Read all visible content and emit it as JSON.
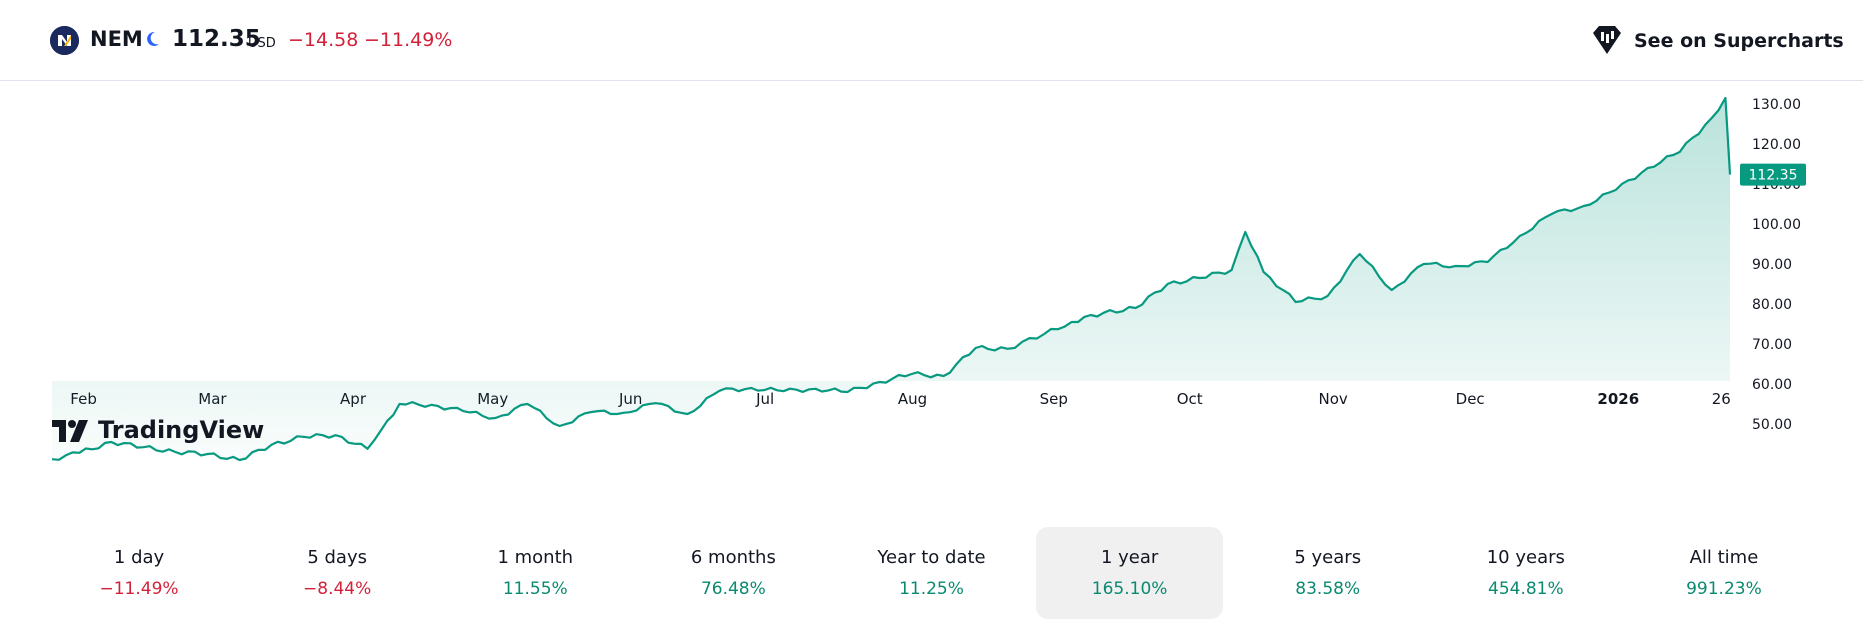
{
  "header": {
    "symbol": "NEM",
    "price": "112.35",
    "currency": "USD",
    "change": "−14.58",
    "change_pct": "−11.49%",
    "supercharts_label": "See on Supercharts",
    "logo_icon": "newmont-logo-icon",
    "market_status_icon": "moon-icon",
    "supercharts_icon": "supercharts-icon"
  },
  "colors": {
    "line": "#089981",
    "negative": "#d3213a",
    "positive": "#0a8a70",
    "price_tag": "#089981"
  },
  "watermark": "TradingView",
  "chart_data": {
    "type": "area",
    "title": "",
    "xlabel": "",
    "ylabel": "",
    "ylim": [
      40,
      135
    ],
    "grid": false,
    "y_ticks": [
      "130.00",
      "120.00",
      "110.00",
      "100.00",
      "90.00",
      "80.00",
      "70.00",
      "60.00",
      "50.00"
    ],
    "last_price_label": "112.35",
    "x_ticks": [
      "Feb",
      "Mar",
      "Apr",
      "May",
      "Jun",
      "Jul",
      "Aug",
      "Sep",
      "Oct",
      "Nov",
      "Dec",
      "2026",
      "26"
    ],
    "x_ticks_bold": [
      "2026"
    ],
    "series": [
      {
        "x": [
          "2025-01-28",
          "2025-02-03",
          "2025-02-10",
          "2025-02-17",
          "2025-02-24",
          "2025-03-03",
          "2025-03-10",
          "2025-03-17",
          "2025-03-24",
          "2025-03-31",
          "2025-04-07",
          "2025-04-10",
          "2025-04-14",
          "2025-04-21",
          "2025-04-28",
          "2025-05-05",
          "2025-05-12",
          "2025-05-19",
          "2025-05-26",
          "2025-06-02",
          "2025-06-09",
          "2025-06-16",
          "2025-06-23",
          "2025-06-30",
          "2025-07-07",
          "2025-07-14",
          "2025-07-21",
          "2025-07-28",
          "2025-08-04",
          "2025-08-11",
          "2025-08-18",
          "2025-08-25",
          "2025-09-02",
          "2025-09-08",
          "2025-09-15",
          "2025-09-22",
          "2025-09-29",
          "2025-10-06",
          "2025-10-13",
          "2025-10-16",
          "2025-10-20",
          "2025-10-27",
          "2025-11-03",
          "2025-11-10",
          "2025-11-17",
          "2025-11-24",
          "2025-12-01",
          "2025-12-08",
          "2025-12-15",
          "2025-12-22",
          "2025-12-29",
          "2026-01-05",
          "2026-01-12",
          "2026-01-19",
          "2026-01-26",
          "2026-01-29",
          "2026-01-30"
        ],
        "y": [
          41.2,
          42.8,
          45.5,
          44.2,
          43.0,
          42.5,
          41.0,
          44.8,
          46.8,
          47.2,
          43.8,
          48.5,
          55.0,
          54.8,
          53.2,
          51.5,
          55.0,
          49.5,
          53.0,
          52.8,
          55.2,
          52.5,
          58.3,
          59.0,
          58.2,
          58.8,
          58.0,
          60.5,
          62.5,
          62.0,
          69.0,
          68.8,
          72.5,
          75.5,
          77.8,
          79.0,
          85.0,
          86.5,
          88.5,
          98.0,
          88.0,
          80.5,
          82.0,
          92.5,
          83.5,
          90.0,
          89.5,
          90.5,
          97.0,
          102.5,
          104.5,
          108.5,
          114.0,
          118.0,
          126.5,
          131.5,
          112.35
        ]
      }
    ]
  },
  "periods": [
    {
      "label": "1 day",
      "value": "−11.49%",
      "sign": "neg",
      "active": false
    },
    {
      "label": "5 days",
      "value": "−8.44%",
      "sign": "neg",
      "active": false
    },
    {
      "label": "1 month",
      "value": "11.55%",
      "sign": "pos",
      "active": false
    },
    {
      "label": "6 months",
      "value": "76.48%",
      "sign": "pos",
      "active": false
    },
    {
      "label": "Year to date",
      "value": "11.25%",
      "sign": "pos",
      "active": false
    },
    {
      "label": "1 year",
      "value": "165.10%",
      "sign": "pos",
      "active": true
    },
    {
      "label": "5 years",
      "value": "83.58%",
      "sign": "pos",
      "active": false
    },
    {
      "label": "10 years",
      "value": "454.81%",
      "sign": "pos",
      "active": false
    },
    {
      "label": "All time",
      "value": "991.23%",
      "sign": "pos",
      "active": false
    }
  ]
}
